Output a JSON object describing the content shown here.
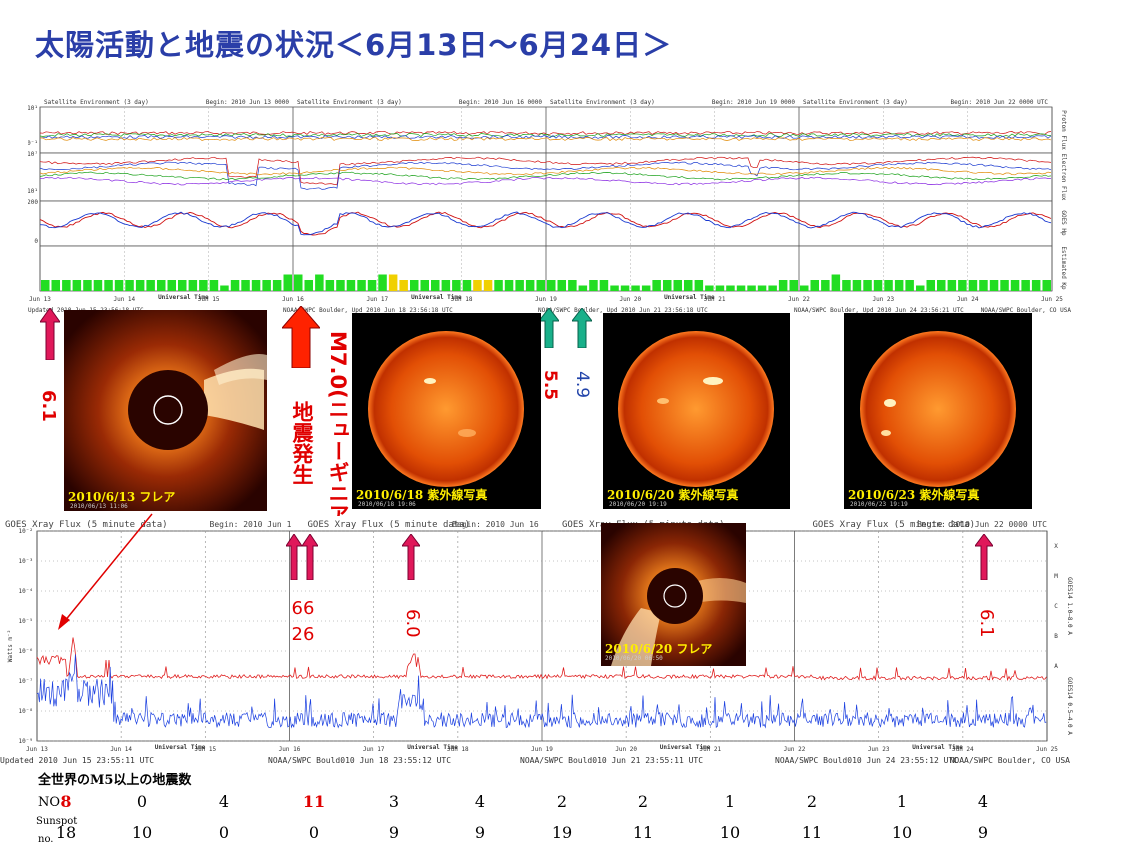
{
  "title": "太陽活動と地震の状況＜6月13日～6月24日＞",
  "top_panel": {
    "panel_titles": [
      "Satellite Environment (3 day)",
      "Satellite Environment (3 day)",
      "Satellite Environment (3 day)",
      "Satellite Environment (3 day)"
    ],
    "begin_labels": [
      "Begin:  2010 Jun 13 0000",
      "Begin:  2010 Jun 16 0000",
      "Begin:  2010 Jun 19 0000",
      "Begin:  2010 Jun 22 0000 UTC"
    ],
    "side_labels": [
      "Proton Flux",
      "Electron Flux",
      "GOES Hp",
      "Estimated Kp"
    ],
    "day_labels": [
      "Jun 13",
      "Jun 14",
      "Jun 15",
      "Jun 16",
      "Jun 17",
      "Jun 18",
      "Jun 19",
      "Jun 20",
      "Jun 21",
      "Jun 22",
      "Jun 23",
      "Jun 24",
      "Jun 25"
    ],
    "universal_time": "Universal Time",
    "footer": [
      "Updated 2010 Jun 15 23:56:18 UTC",
      "NOAA/SWPC Boulder, Upd 2010 Jun 18 23:56:18 UTC",
      "NOAA/SWPC Boulder, Upd 2010 Jun 21 23:56:18 UTC",
      "NOAA/SWPC Boulder, Upd 2010 Jun 24 23:56:21 UTC",
      "NOAA/SWPC Boulder, CO USA"
    ],
    "y_ticks": [
      "10¹",
      "10⁻¹",
      "10⁷",
      "10¹",
      "200",
      "0"
    ]
  },
  "images": [
    {
      "label": "2010/6/13 フレア",
      "date": "2010/06/13 11:06"
    },
    {
      "label": "2010/6/18 紫外線写真",
      "date": "2010/06/18 19:06"
    },
    {
      "label": "2010/6/20 紫外線写真",
      "date": "2010/06/20 19:19"
    },
    {
      "label": "2010/6/23 紫外線写真",
      "date": "2010/06/23 19:19"
    },
    {
      "label": "2010/6/20 フレア",
      "date": "2010/06/20 06:50"
    }
  ],
  "annotations": {
    "a1": "6.1",
    "quake_main": "M7.0(ニューギニア島)地震発生",
    "a3": "5.5",
    "a4": "4.9",
    "a5a": "66",
    "a5b": "26",
    "a6": "6.0",
    "a7": "6.1"
  },
  "xray": {
    "title": "GOES Xray Flux (5 minute data)",
    "begin_labels": [
      "Begin:  2010 Jun 1",
      "Begin:  2010 Jun 16",
      "Begin:  2010 Jun 22 0000 UTC"
    ],
    "y_label": "Watts m⁻²",
    "y_ticks": [
      "10⁻²",
      "10⁻³",
      "10⁻⁴",
      "10⁻⁵",
      "10⁻⁶",
      "10⁻⁷",
      "10⁻⁸",
      "10⁻⁹"
    ],
    "class_letters": [
      "X",
      "M",
      "C",
      "B",
      "A"
    ],
    "side_red": "GOES14 1.0–8.0 A",
    "side_blue": "GOES14 0.5–4.0 A",
    "footer": [
      "Updated 2010 Jun 15 23:55:11 UTC",
      "NOAA/SWPC Bould010 Jun 18 23:55:12 UTC",
      "NOAA/SWPC Bould010 Jun 21 23:55:11 UTC",
      "NOAA/SWPC Bould010 Jun 24 23:55:12 UTC",
      "NOAA/SWPC Boulder, CO USA"
    ],
    "colors": {
      "long": "#e02020",
      "short": "#1a3fe0"
    }
  },
  "table": {
    "heading": "全世界のM5以上の地震数",
    "row1_label": "NO",
    "row2_label_a": "Sunspot",
    "row2_label_b": "no.",
    "no": [
      "8",
      "0",
      "4",
      "11",
      "3",
      "4",
      "2",
      "2",
      "1",
      "2",
      "1",
      "4"
    ],
    "sunspot": [
      "18",
      "10",
      "0",
      "0",
      "9",
      "9",
      "19",
      "11",
      "10",
      "11",
      "10",
      "9"
    ],
    "highlight_no": [
      0,
      3
    ]
  },
  "chart_data": {
    "type": "table",
    "title": "太陽活動と地震の状況＜6月13日～6月24日＞",
    "categories": [
      "Jun 13",
      "Jun 14",
      "Jun 15",
      "Jun 16",
      "Jun 17",
      "Jun 18",
      "Jun 19",
      "Jun 20",
      "Jun 21",
      "Jun 22",
      "Jun 23",
      "Jun 24"
    ],
    "series": [
      {
        "name": "NO",
        "values": [
          8,
          0,
          4,
          11,
          3,
          4,
          2,
          2,
          1,
          2,
          1,
          4
        ]
      },
      {
        "name": "Sunspot no.",
        "values": [
          18,
          10,
          0,
          0,
          9,
          9,
          19,
          11,
          10,
          11,
          10,
          9
        ]
      }
    ],
    "kp_bars_estimate": [
      2,
      2,
      2,
      2,
      2,
      2,
      2,
      2,
      2,
      2,
      2,
      2,
      2,
      2,
      2,
      2,
      2,
      1,
      2,
      2,
      2,
      2,
      2,
      3,
      3,
      2,
      3,
      2,
      2,
      2,
      2,
      2,
      3,
      3,
      2,
      2,
      2,
      2,
      2,
      2,
      2,
      2,
      2,
      2,
      2,
      2,
      2,
      2,
      2,
      2,
      2,
      1,
      2,
      2,
      1,
      1,
      1,
      1,
      2,
      2,
      2,
      2,
      2,
      1,
      1,
      1,
      1,
      1,
      1,
      1,
      2,
      2,
      1,
      2,
      2,
      3,
      2,
      2,
      2,
      2,
      2,
      2,
      2,
      1,
      2,
      2,
      2,
      2,
      2,
      2,
      2,
      2,
      2,
      2,
      2,
      2
    ],
    "kp_yellow_indices": [
      33,
      34,
      41,
      42
    ]
  }
}
